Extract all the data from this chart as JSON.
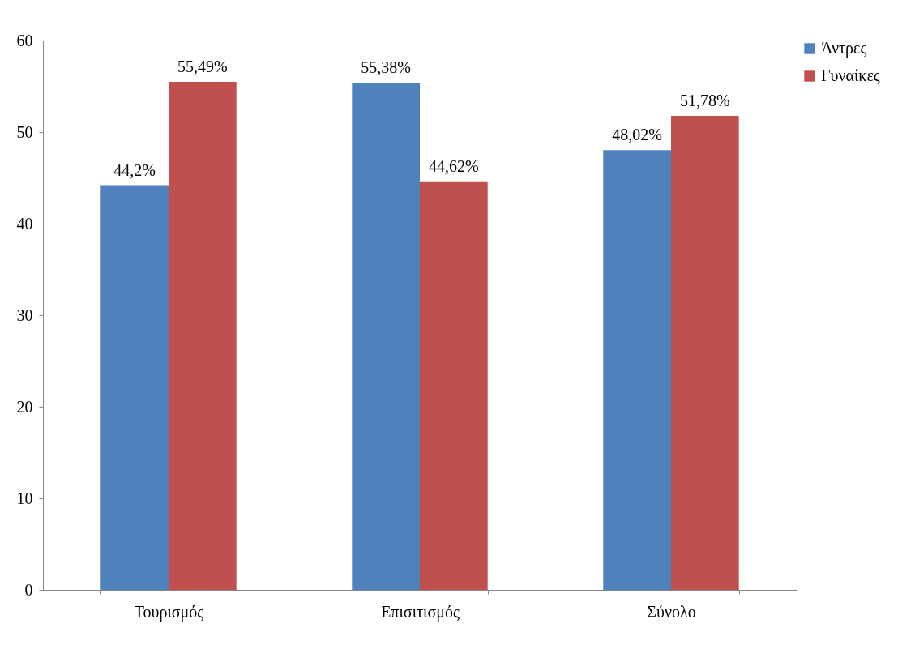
{
  "chart_data": {
    "type": "bar",
    "categories": [
      "Τουρισμός",
      "Επισιτισμός",
      "Σύνολο"
    ],
    "series": [
      {
        "name": "Άντρες",
        "color": "#4f81bd",
        "values": [
          44.2,
          55.38,
          48.02
        ],
        "value_labels": [
          "44,2%",
          "55,38%",
          "48,02%"
        ]
      },
      {
        "name": "Γυναίκες",
        "color": "#c0504d",
        "values": [
          55.49,
          44.62,
          51.78
        ],
        "value_labels": [
          "55,49%",
          "44,62%",
          "51,78%"
        ]
      }
    ],
    "ylim": [
      0,
      60
    ],
    "yticks": [
      0,
      10,
      20,
      30,
      40,
      50,
      60
    ],
    "grid": false,
    "legend": "top right"
  }
}
